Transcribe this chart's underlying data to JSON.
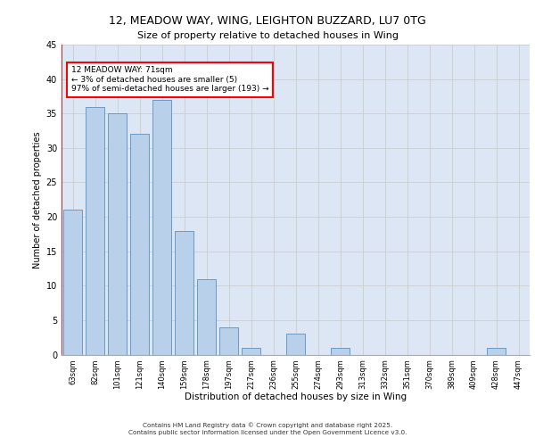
{
  "title_line1": "12, MEADOW WAY, WING, LEIGHTON BUZZARD, LU7 0TG",
  "title_line2": "Size of property relative to detached houses in Wing",
  "xlabel": "Distribution of detached houses by size in Wing",
  "ylabel": "Number of detached properties",
  "categories": [
    "63sqm",
    "82sqm",
    "101sqm",
    "121sqm",
    "140sqm",
    "159sqm",
    "178sqm",
    "197sqm",
    "217sqm",
    "236sqm",
    "255sqm",
    "274sqm",
    "293sqm",
    "313sqm",
    "332sqm",
    "351sqm",
    "370sqm",
    "389sqm",
    "409sqm",
    "428sqm",
    "447sqm"
  ],
  "values": [
    21,
    36,
    35,
    32,
    37,
    18,
    11,
    4,
    1,
    0,
    3,
    0,
    1,
    0,
    0,
    0,
    0,
    0,
    0,
    1,
    0
  ],
  "bar_color": "#b8d0ea",
  "bar_edge_color": "#6699cc",
  "annotation_box_text": "12 MEADOW WAY: 71sqm\n← 3% of detached houses are smaller (5)\n97% of semi-detached houses are larger (193) →",
  "ylim": [
    0,
    45
  ],
  "yticks": [
    0,
    5,
    10,
    15,
    20,
    25,
    30,
    35,
    40,
    45
  ],
  "grid_color": "#cccccc",
  "bg_color": "#dce6f5",
  "footer_line1": "Contains HM Land Registry data © Crown copyright and database right 2025.",
  "footer_line2": "Contains public sector information licensed under the Open Government Licence v3.0."
}
